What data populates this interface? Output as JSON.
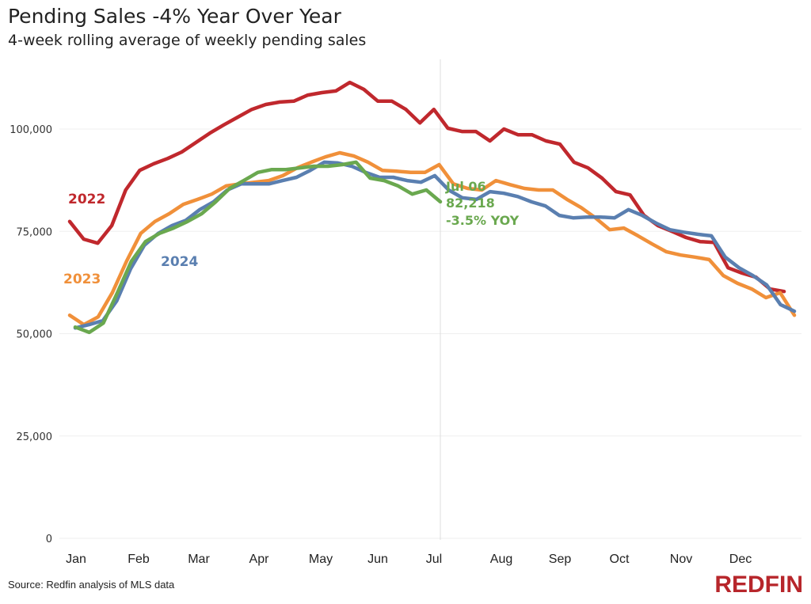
{
  "title": "Pending Sales -4% Year Over Year",
  "subtitle": "4-week rolling average of weekly pending sales",
  "source": "Source: Redfin analysis of MLS data",
  "logo": "REDFIN",
  "chart_data": {
    "type": "line",
    "ylim": [
      0,
      115000
    ],
    "yticks": [
      0,
      25000,
      50000,
      75000,
      100000
    ],
    "ytick_labels": [
      "0",
      "25,000",
      "50,000",
      "75,000",
      "100,000"
    ],
    "xtick_labels": [
      "Jan",
      "Feb",
      "Mar",
      "Apr",
      "May",
      "Jun",
      "Jul",
      "Aug",
      "Sep",
      "Oct",
      "Nov",
      "Dec"
    ],
    "grid": "horizontal",
    "reference_line": "Jul 06",
    "series": [
      {
        "name": "2022",
        "color": "#c0282d",
        "values": [
          77400,
          73100,
          72100,
          76400,
          85100,
          89900,
          91500,
          92800,
          94400,
          96700,
          99000,
          101000,
          102900,
          104800,
          106000,
          106600,
          106800,
          108300,
          108900,
          109300,
          111400,
          109700,
          106800,
          106800,
          104800,
          101500,
          104800,
          100200,
          99400,
          99400,
          97100,
          100000,
          98600,
          98600,
          97100,
          96300,
          91900,
          90500,
          88000,
          84700,
          83900,
          78900,
          76400,
          75000,
          73500,
          72500,
          72300,
          66100,
          64800,
          63800,
          60900,
          60300
        ]
      },
      {
        "name": "2023",
        "color": "#f0903a",
        "values": [
          54500,
          52200,
          54100,
          60000,
          67700,
          74500,
          77400,
          79300,
          81600,
          82800,
          84100,
          86100,
          86600,
          87000,
          87400,
          88600,
          90500,
          91900,
          93200,
          94200,
          93400,
          91900,
          89900,
          89700,
          89400,
          89400,
          91300,
          86600,
          85500,
          85100,
          87400,
          86400,
          85500,
          85100,
          85100,
          82800,
          80800,
          78300,
          75400,
          75800,
          73900,
          71900,
          70000,
          69200,
          68700,
          68100,
          64200,
          62300,
          60900,
          58800,
          60000,
          54500
        ]
      },
      {
        "name": "2024",
        "color": "#5a7fb0",
        "values": [
          51400,
          52200,
          53200,
          58000,
          65800,
          71600,
          74500,
          76400,
          77700,
          80300,
          82200,
          85100,
          86600,
          86600,
          86600,
          87400,
          88200,
          89900,
          91900,
          91700,
          90900,
          89400,
          88200,
          88200,
          87400,
          87000,
          88600,
          85100,
          83200,
          82800,
          84700,
          84300,
          83500,
          82200,
          81200,
          78900,
          78300,
          78500,
          78500,
          78300,
          80300,
          78900,
          77000,
          75400,
          74800,
          74300,
          73900,
          68700,
          66100,
          64200,
          61900,
          57100,
          55500
        ]
      },
      {
        "color": "#6aa84f",
        "values": [
          51600,
          50300,
          52600,
          60000,
          67700,
          72500,
          74500,
          75800,
          77400,
          79300,
          82200,
          85500,
          87400,
          89400,
          90100,
          90100,
          90500,
          90900,
          90900,
          91300,
          91900,
          88000,
          87400,
          86100,
          84100,
          85100,
          82218
        ]
      }
    ],
    "annotations": {
      "date": "Jul 06",
      "value": "82,218",
      "yoy": "-3.5% YOY"
    }
  }
}
